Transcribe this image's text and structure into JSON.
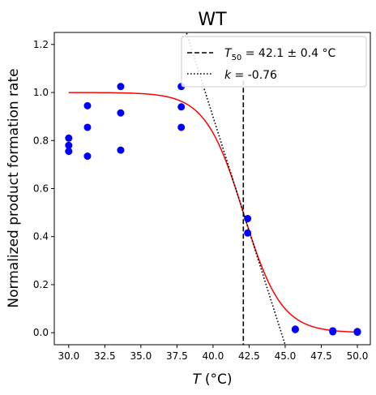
{
  "chart_data": {
    "type": "scatter",
    "title": "WT",
    "xlabel_var": "T",
    "xlabel_unit": "(°C)",
    "ylabel": "Normalized product formation rate",
    "xlim": [
      29,
      50.9
    ],
    "ylim": [
      -0.05,
      1.25
    ],
    "xticks": [
      30.0,
      32.5,
      35.0,
      37.5,
      40.0,
      42.5,
      45.0,
      47.5,
      50.0
    ],
    "xtick_labels": [
      "30.0",
      "32.5",
      "35.0",
      "37.5",
      "40.0",
      "42.5",
      "45.0",
      "47.5",
      "50.0"
    ],
    "yticks": [
      0.0,
      0.2,
      0.4,
      0.6,
      0.8,
      1.0,
      1.2
    ],
    "ytick_labels": [
      "0.0",
      "0.2",
      "0.4",
      "0.6",
      "0.8",
      "1.0",
      "1.2"
    ],
    "grid": false,
    "legend_position": "top-right",
    "points": {
      "color": "#0000ff",
      "x": [
        30.0,
        30.0,
        30.0,
        31.3,
        31.3,
        31.3,
        33.6,
        33.6,
        33.6,
        37.8,
        37.8,
        37.8,
        42.4,
        42.4,
        45.7,
        45.7,
        48.3,
        48.3,
        50.0,
        50.0
      ],
      "y": [
        0.81,
        0.78,
        0.755,
        0.945,
        0.855,
        0.735,
        1.025,
        0.915,
        0.76,
        1.025,
        0.94,
        0.855,
        0.475,
        0.415,
        0.015,
        0.013,
        0.008,
        0.004,
        0.005,
        0.002
      ]
    },
    "fit_curve": {
      "color": "#ff0000",
      "type": "sigmoid",
      "top": 1.0,
      "T50": 42.1,
      "k": -0.76
    },
    "t50_line": {
      "x": 42.1,
      "style": "dashed",
      "color": "#000000",
      "legend_prefix": "T",
      "legend_sub": "50",
      "legend_value": " = 42.1 ± 0.4 °C"
    },
    "slope_line": {
      "style": "dotted",
      "color": "#000000",
      "slope_per_degC": -0.19,
      "legend_prefix": "k",
      "legend_value": " = -0.76"
    }
  }
}
